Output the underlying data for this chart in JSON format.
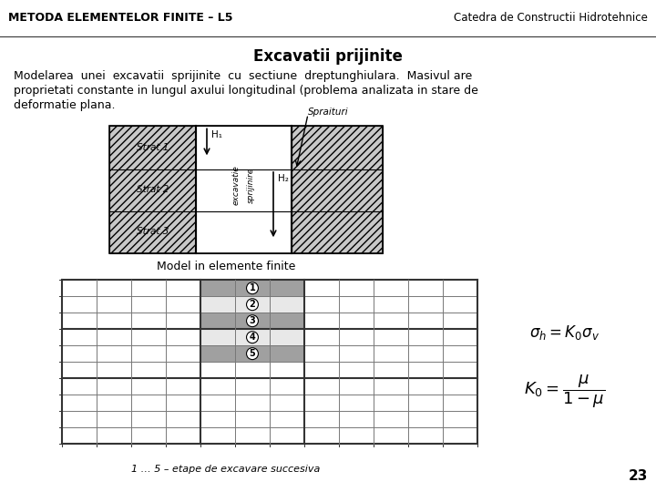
{
  "header_bg": "#F0C040",
  "header_text_left": "METODA ELEMENTELOR FINITE – L5",
  "header_text_right": "Catedra de Constructii Hidrotehnice",
  "title": "Excavatii prijinite",
  "strat_labels": [
    "Strat 1",
    "Strat 2",
    "Strat 3"
  ],
  "h1_label": "H₁",
  "h2_label": "H₂",
  "spraituri_label": "Spraituri",
  "excavatie_label": "excavatie",
  "sprijinire_label": "sprijinire",
  "model_label": "Model in elemente finite",
  "caption": "1 … 5 – etape de excavare succesiva",
  "page_num": "23",
  "white": "#ffffff",
  "black": "#000000"
}
